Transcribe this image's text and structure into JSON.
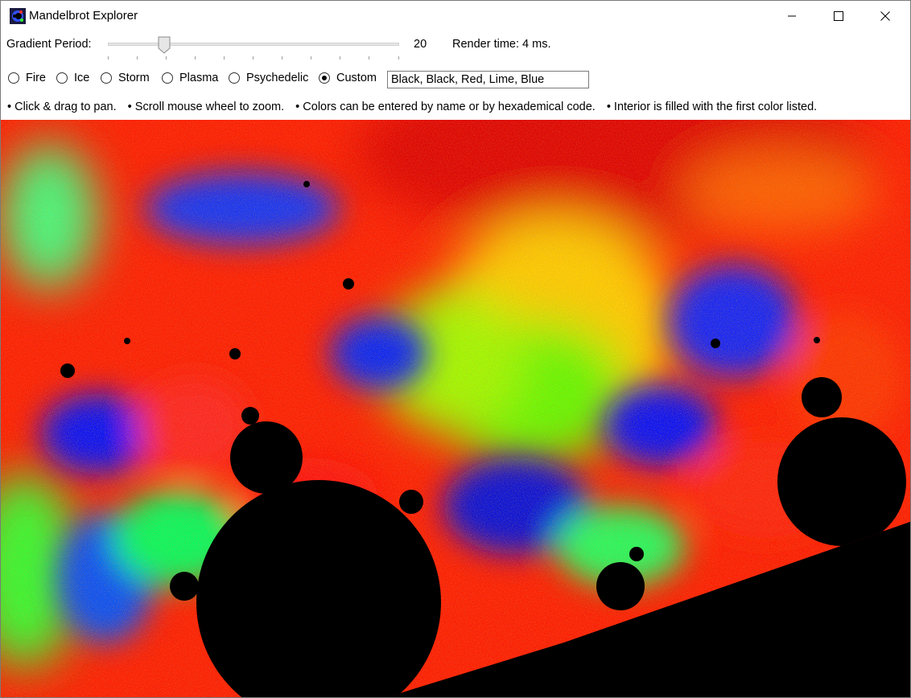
{
  "window": {
    "title": "Mandelbrot Explorer",
    "icon": "mandelbrot-app-icon"
  },
  "controls": {
    "gradient_label": "Gradient Period:",
    "gradient_value": "20",
    "gradient_level": 0.2,
    "render_time": "Render time: 4 ms."
  },
  "palettes": [
    {
      "label": "Fire",
      "checked": false
    },
    {
      "label": "Ice",
      "checked": false
    },
    {
      "label": "Storm",
      "checked": false
    },
    {
      "label": "Plasma",
      "checked": false
    },
    {
      "label": "Psychedelic",
      "checked": false
    },
    {
      "label": "Custom",
      "checked": true
    }
  ],
  "custom_colors": "Black, Black, Red, Lime, Blue",
  "hints": [
    "• Click & drag to pan.",
    "• Scroll mouse wheel to zoom.",
    "• Colors can be entered by name or by hexademical code.",
    "• Interior is filled with the first color listed."
  ],
  "fractal_colors": [
    "#000000",
    "#ff0000",
    "#00ff00",
    "#0000ff"
  ]
}
